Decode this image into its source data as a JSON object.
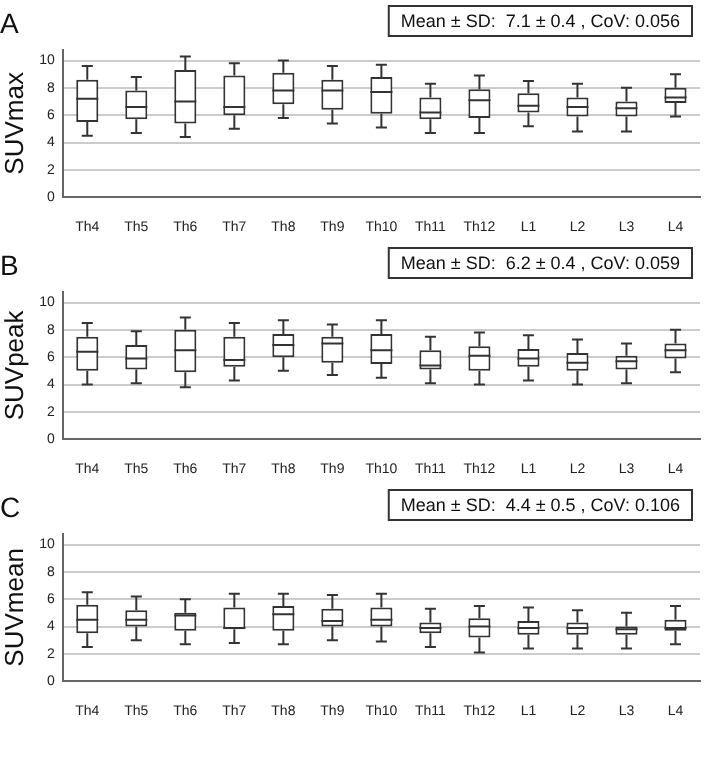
{
  "chart_data": [
    {
      "type": "box",
      "title": "A",
      "ylabel": "SUVmax",
      "annotations": [
        "Mean ± SD:  7.1 ± 0.4 , CoV: 0.056"
      ],
      "grid": "y",
      "legend": false,
      "ylim": [
        0,
        10.8
      ],
      "yticks": [
        0,
        2,
        4,
        6,
        8,
        10
      ],
      "categories": [
        "Th4",
        "Th5",
        "Th6",
        "Th7",
        "Th8",
        "Th9",
        "Th10",
        "Th11",
        "Th12",
        "L1",
        "L2",
        "L3",
        "L4"
      ],
      "boxes": [
        {
          "low": 4.5,
          "q1": 5.5,
          "median": 7.2,
          "q3": 8.6,
          "high": 9.6
        },
        {
          "low": 4.7,
          "q1": 5.7,
          "median": 6.6,
          "q3": 7.8,
          "high": 8.8
        },
        {
          "low": 4.4,
          "q1": 5.4,
          "median": 7.0,
          "q3": 9.3,
          "high": 10.3
        },
        {
          "low": 5.0,
          "q1": 6.0,
          "median": 6.6,
          "q3": 8.9,
          "high": 9.8
        },
        {
          "low": 5.8,
          "q1": 6.8,
          "median": 7.8,
          "q3": 9.1,
          "high": 10.0
        },
        {
          "low": 5.4,
          "q1": 6.4,
          "median": 7.8,
          "q3": 8.6,
          "high": 9.6
        },
        {
          "low": 5.1,
          "q1": 6.1,
          "median": 7.7,
          "q3": 8.8,
          "high": 9.7
        },
        {
          "low": 4.7,
          "q1": 5.7,
          "median": 6.2,
          "q3": 7.3,
          "high": 8.3
        },
        {
          "low": 4.7,
          "q1": 5.8,
          "median": 7.1,
          "q3": 7.9,
          "high": 8.9
        },
        {
          "low": 5.2,
          "q1": 6.2,
          "median": 6.7,
          "q3": 7.6,
          "high": 8.5
        },
        {
          "low": 4.8,
          "q1": 5.9,
          "median": 6.6,
          "q3": 7.3,
          "high": 8.3
        },
        {
          "low": 4.8,
          "q1": 5.9,
          "median": 6.5,
          "q3": 7.0,
          "high": 8.0
        },
        {
          "low": 5.9,
          "q1": 6.9,
          "median": 7.3,
          "q3": 8.0,
          "high": 9.0
        }
      ]
    },
    {
      "type": "box",
      "title": "B",
      "ylabel": "SUVpeak",
      "annotations": [
        "Mean ± SD:  6.2 ± 0.4 , CoV: 0.059"
      ],
      "grid": "y",
      "legend": false,
      "ylim": [
        0,
        10.8
      ],
      "yticks": [
        0,
        2,
        4,
        6,
        8,
        10
      ],
      "categories": [
        "Th4",
        "Th5",
        "Th6",
        "Th7",
        "Th8",
        "Th9",
        "Th10",
        "Th11",
        "Th12",
        "L1",
        "L2",
        "L3",
        "L4"
      ],
      "boxes": [
        {
          "low": 4.0,
          "q1": 5.0,
          "median": 6.4,
          "q3": 7.5,
          "high": 8.5
        },
        {
          "low": 4.1,
          "q1": 5.1,
          "median": 5.9,
          "q3": 6.9,
          "high": 7.9
        },
        {
          "low": 3.8,
          "q1": 4.9,
          "median": 6.5,
          "q3": 8.0,
          "high": 8.9
        },
        {
          "low": 4.3,
          "q1": 5.3,
          "median": 5.8,
          "q3": 7.5,
          "high": 8.5
        },
        {
          "low": 5.0,
          "q1": 6.0,
          "median": 6.9,
          "q3": 7.7,
          "high": 8.7
        },
        {
          "low": 4.7,
          "q1": 5.6,
          "median": 7.0,
          "q3": 7.5,
          "high": 8.4
        },
        {
          "low": 4.5,
          "q1": 5.5,
          "median": 6.5,
          "q3": 7.7,
          "high": 8.7
        },
        {
          "low": 4.1,
          "q1": 5.1,
          "median": 5.4,
          "q3": 6.5,
          "high": 7.5
        },
        {
          "low": 4.0,
          "q1": 5.0,
          "median": 6.1,
          "q3": 6.8,
          "high": 7.8
        },
        {
          "low": 4.3,
          "q1": 5.3,
          "median": 5.9,
          "q3": 6.6,
          "high": 7.6
        },
        {
          "low": 4.0,
          "q1": 5.0,
          "median": 5.6,
          "q3": 6.3,
          "high": 7.3
        },
        {
          "low": 4.1,
          "q1": 5.1,
          "median": 5.7,
          "q3": 6.1,
          "high": 7.0
        },
        {
          "low": 4.9,
          "q1": 5.9,
          "median": 6.5,
          "q3": 7.0,
          "high": 8.0
        }
      ]
    },
    {
      "type": "box",
      "title": "C",
      "ylabel": "SUVmean",
      "annotations": [
        "Mean ± SD:  4.4 ± 0.5 , CoV: 0.106"
      ],
      "grid": "y",
      "legend": false,
      "ylim": [
        0,
        10.8
      ],
      "yticks": [
        0,
        2,
        4,
        6,
        8,
        10
      ],
      "categories": [
        "Th4",
        "Th5",
        "Th6",
        "Th7",
        "Th8",
        "Th9",
        "Th10",
        "Th11",
        "Th12",
        "L1",
        "L2",
        "L3",
        "L4"
      ],
      "boxes": [
        {
          "low": 2.5,
          "q1": 3.5,
          "median": 4.5,
          "q3": 5.6,
          "high": 6.5
        },
        {
          "low": 3.0,
          "q1": 4.0,
          "median": 4.5,
          "q3": 5.2,
          "high": 6.2
        },
        {
          "low": 2.7,
          "q1": 3.7,
          "median": 4.8,
          "q3": 5.0,
          "high": 6.0
        },
        {
          "low": 2.8,
          "q1": 3.8,
          "median": 3.9,
          "q3": 5.4,
          "high": 6.4
        },
        {
          "low": 2.7,
          "q1": 3.7,
          "median": 4.9,
          "q3": 5.5,
          "high": 6.4
        },
        {
          "low": 3.0,
          "q1": 4.0,
          "median": 4.4,
          "q3": 5.3,
          "high": 6.3
        },
        {
          "low": 2.9,
          "q1": 4.0,
          "median": 4.5,
          "q3": 5.4,
          "high": 6.4
        },
        {
          "low": 2.5,
          "q1": 3.5,
          "median": 3.9,
          "q3": 4.3,
          "high": 5.3
        },
        {
          "low": 2.1,
          "q1": 3.2,
          "median": 4.0,
          "q3": 4.6,
          "high": 5.5
        },
        {
          "low": 2.4,
          "q1": 3.4,
          "median": 3.9,
          "q3": 4.4,
          "high": 5.4
        },
        {
          "low": 2.4,
          "q1": 3.4,
          "median": 3.9,
          "q3": 4.3,
          "high": 5.2
        },
        {
          "low": 2.4,
          "q1": 3.4,
          "median": 3.8,
          "q3": 4.0,
          "high": 5.0
        },
        {
          "low": 2.7,
          "q1": 3.7,
          "median": 3.9,
          "q3": 4.5,
          "high": 5.5
        }
      ]
    }
  ]
}
